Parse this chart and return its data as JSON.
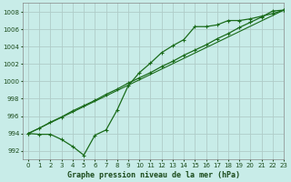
{
  "title": "Graphe pression niveau de la mer (hPa)",
  "bg_color": "#c8ece8",
  "grid_color": "#b0ccc8",
  "line_color": "#1a6b1a",
  "xlim": [
    -0.5,
    23
  ],
  "ylim": [
    991.0,
    1009.0
  ],
  "xticks": [
    0,
    1,
    2,
    3,
    4,
    5,
    6,
    7,
    8,
    9,
    10,
    11,
    12,
    13,
    14,
    15,
    16,
    17,
    18,
    19,
    20,
    21,
    22,
    23
  ],
  "yticks": [
    992,
    994,
    996,
    998,
    1000,
    1002,
    1004,
    1006,
    1008
  ],
  "series1_x": [
    0,
    1,
    2,
    3,
    4,
    5,
    6,
    7,
    8,
    9,
    10,
    11,
    12,
    13,
    14,
    15,
    16,
    17,
    18,
    19,
    20,
    21,
    22,
    23
  ],
  "series1_y": [
    994.0,
    993.9,
    993.9,
    993.3,
    992.5,
    991.5,
    993.8,
    994.4,
    996.7,
    999.5,
    1001.0,
    1002.1,
    1003.3,
    1004.1,
    1004.8,
    1006.3,
    1006.3,
    1006.5,
    1007.0,
    1007.0,
    1007.2,
    1007.5,
    1007.8,
    1008.2
  ],
  "series2_x": [
    0,
    1,
    2,
    3,
    4,
    5,
    6,
    7,
    8,
    9,
    10,
    11,
    12,
    13,
    14,
    15,
    16,
    17,
    18,
    19,
    20,
    21,
    22,
    23
  ],
  "series2_y": [
    994.0,
    994.6,
    995.3,
    995.9,
    996.6,
    997.2,
    997.8,
    998.5,
    999.1,
    999.8,
    1000.4,
    1001.0,
    1001.7,
    1002.3,
    1003.0,
    1003.6,
    1004.2,
    1004.9,
    1005.5,
    1006.2,
    1006.8,
    1007.4,
    1008.1,
    1008.2
  ],
  "xlabel_fontsize": 6.0,
  "tick_fontsize": 5.0,
  "label_color": "#1a4a1a"
}
